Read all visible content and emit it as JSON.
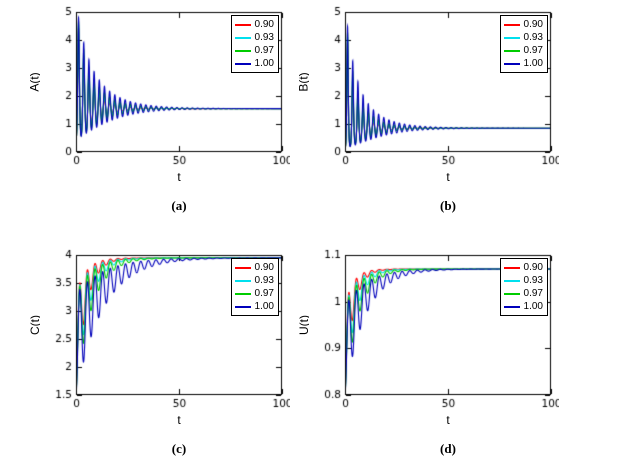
{
  "figure": {
    "background": "#ffffff",
    "layout": "2x2-subplots"
  },
  "chart_data": [
    {
      "type": "line",
      "panel": "a",
      "caption": "(a)",
      "xlabel": "t",
      "ylabel": "A(t)",
      "xlim": [
        0,
        100
      ],
      "ylim": [
        0,
        5
      ],
      "xtick_values": [
        0,
        50,
        100
      ],
      "xtick_labels": [
        "0",
        "50",
        "100"
      ],
      "ytick_values": [
        0,
        1,
        2,
        3,
        4,
        5
      ],
      "ytick_labels": [
        "0",
        "1",
        "2",
        "3",
        "4",
        "5"
      ],
      "grid": false,
      "legend_position": "top-right",
      "model": "log-damped-oscillation",
      "model_formula": "y(t) = equilibrium * exp(amp * exp(-damping*t) * cos(omega*t + phase))",
      "equilibrium": 1.55,
      "initial_value": 0.45,
      "peak_value": 4.9,
      "oscillation": {
        "omega": 2.5,
        "phase": 3.14159
      },
      "series": [
        {
          "label": "0.90",
          "color": "#ff0000",
          "amp": 1.25,
          "damping": 0.14
        },
        {
          "label": "0.93",
          "color": "#00e0ee",
          "amp": 1.25,
          "damping": 0.12
        },
        {
          "label": "0.97",
          "color": "#00cc00",
          "amp": 1.25,
          "damping": 0.1
        },
        {
          "label": "1.00",
          "color": "#0000bb",
          "amp": 1.25,
          "damping": 0.08
        }
      ]
    },
    {
      "type": "line",
      "panel": "b",
      "caption": "(b)",
      "xlabel": "t",
      "ylabel": "B(t)",
      "xlim": [
        0,
        100
      ],
      "ylim": [
        0,
        5
      ],
      "xtick_values": [
        0,
        50,
        100
      ],
      "xtick_labels": [
        "0",
        "50",
        "100"
      ],
      "ytick_values": [
        0,
        1,
        2,
        3,
        4,
        5
      ],
      "ytick_labels": [
        "0",
        "1",
        "2",
        "3",
        "4",
        "5"
      ],
      "grid": false,
      "legend_position": "top-right",
      "model": "log-damped-oscillation",
      "model_formula": "y(t) = equilibrium * exp(amp * exp(-damping*t) * cos(omega*t + phase))",
      "equilibrium": 0.85,
      "initial_value": 0.13,
      "peak_value": 4.4,
      "oscillation": {
        "omega": 2.5,
        "phase": 3.14159
      },
      "series": [
        {
          "label": "0.90",
          "color": "#ff0000",
          "amp": 1.85,
          "damping": 0.15
        },
        {
          "label": "0.93",
          "color": "#00e0ee",
          "amp": 1.85,
          "damping": 0.13
        },
        {
          "label": "0.97",
          "color": "#00cc00",
          "amp": 1.85,
          "damping": 0.11
        },
        {
          "label": "1.00",
          "color": "#0000bb",
          "amp": 1.85,
          "damping": 0.085
        }
      ]
    },
    {
      "type": "line",
      "panel": "c",
      "caption": "(c)",
      "xlabel": "t",
      "ylabel": "C(t)",
      "xlim": [
        0,
        100
      ],
      "ylim": [
        1.5,
        4
      ],
      "xtick_values": [
        0,
        50,
        100
      ],
      "xtick_labels": [
        "0",
        "50",
        "100"
      ],
      "ytick_values": [
        1.5,
        2,
        2.5,
        3,
        3.5,
        4
      ],
      "ytick_labels": [
        "1.5",
        "2",
        "2.5",
        "3",
        "3.5",
        "4"
      ],
      "grid": false,
      "legend_position": "top-right",
      "model": "damped-approach",
      "model_formula": "y(t) = equilibrium + exp(-damping*t) * (offset + amp*cos(omega*t + phase))",
      "equilibrium": 3.95,
      "initial_value": 1.5,
      "oscillation": {
        "omega": 1.7,
        "phase": 0
      },
      "series": [
        {
          "label": "0.90",
          "color": "#ff0000",
          "offset": -1.55,
          "amp": -0.9,
          "damping": 0.2
        },
        {
          "label": "0.93",
          "color": "#00e0ee",
          "offset": -1.55,
          "amp": -0.9,
          "damping": 0.16
        },
        {
          "label": "0.97",
          "color": "#00cc00",
          "offset": -1.55,
          "amp": -0.9,
          "damping": 0.13
        },
        {
          "label": "1.00",
          "color": "#0000bb",
          "offset": -1.55,
          "amp": -0.9,
          "damping": 0.075
        }
      ]
    },
    {
      "type": "line",
      "panel": "d",
      "caption": "(d)",
      "xlabel": "t",
      "ylabel": "U(t)",
      "xlim": [
        0,
        100
      ],
      "ylim": [
        0.8,
        1.1
      ],
      "xtick_values": [
        0,
        50,
        100
      ],
      "xtick_labels": [
        "0",
        "50",
        "100"
      ],
      "ytick_values": [
        0.8,
        0.9,
        1,
        1.1
      ],
      "ytick_labels": [
        "0.8",
        "0.9",
        "1",
        "1.1"
      ],
      "grid": false,
      "legend_position": "top-right",
      "model": "damped-approach",
      "model_formula": "y(t) = equilibrium + exp(-damping*t) * (offset + amp*cos(omega*t + phase))",
      "equilibrium": 1.07,
      "initial_value": 0.8,
      "oscillation": {
        "omega": 1.7,
        "phase": 0
      },
      "series": [
        {
          "label": "0.90",
          "color": "#ff0000",
          "offset": -0.175,
          "amp": -0.095,
          "damping": 0.25
        },
        {
          "label": "0.93",
          "color": "#00e0ee",
          "offset": -0.175,
          "amp": -0.095,
          "damping": 0.19
        },
        {
          "label": "0.97",
          "color": "#00cc00",
          "offset": -0.175,
          "amp": -0.095,
          "damping": 0.15
        },
        {
          "label": "1.00",
          "color": "#0000bb",
          "offset": -0.175,
          "amp": -0.095,
          "damping": 0.1
        }
      ]
    }
  ]
}
